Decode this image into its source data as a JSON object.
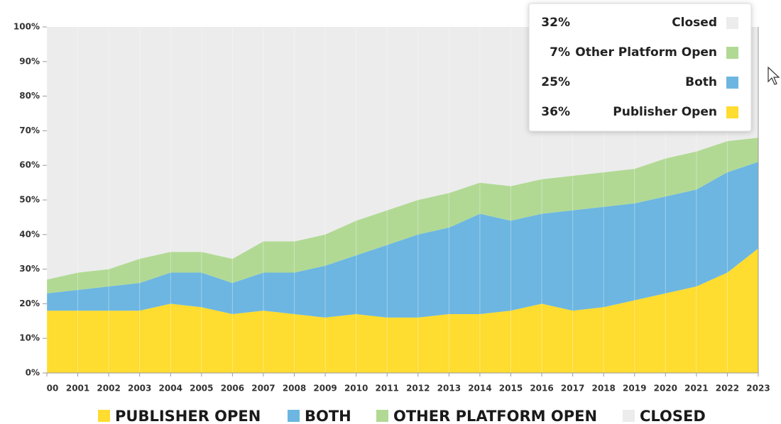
{
  "chart_data": {
    "type": "stacked_area",
    "categories": [
      "00",
      "2001",
      "2002",
      "2003",
      "2004",
      "2005",
      "2006",
      "2007",
      "2008",
      "2009",
      "2010",
      "2011",
      "2012",
      "2013",
      "2014",
      "2015",
      "2016",
      "2017",
      "2018",
      "2019",
      "2020",
      "2021",
      "2022",
      "2023"
    ],
    "series": [
      {
        "name": "Publisher Open",
        "color": "#fedc30",
        "values": [
          18,
          18,
          18,
          18,
          20,
          19,
          17,
          18,
          17,
          16,
          17,
          16,
          16,
          17,
          17,
          18,
          20,
          18,
          19,
          21,
          23,
          25,
          29,
          36
        ]
      },
      {
        "name": "Both",
        "color": "#6cb6e1",
        "values": [
          5,
          6,
          7,
          8,
          9,
          10,
          9,
          11,
          12,
          15,
          17,
          21,
          24,
          25,
          29,
          26,
          26,
          29,
          29,
          28,
          28,
          28,
          29,
          25
        ]
      },
      {
        "name": "Other Platform Open",
        "color": "#b1d994",
        "values": [
          4,
          5,
          5,
          7,
          6,
          6,
          7,
          9,
          9,
          9,
          10,
          10,
          10,
          10,
          9,
          10,
          10,
          10,
          10,
          10,
          11,
          11,
          9,
          7
        ]
      },
      {
        "name": "Closed",
        "color": "#ececec",
        "values": [
          73,
          71,
          70,
          67,
          65,
          65,
          67,
          62,
          62,
          60,
          56,
          53,
          50,
          48,
          45,
          46,
          44,
          43,
          42,
          41,
          38,
          36,
          33,
          32
        ]
      }
    ],
    "tooltip_labels": [
      "36%",
      "25%",
      "7%",
      "32%"
    ],
    "ylim": [
      0,
      100
    ],
    "yticks": [
      {
        "value": 0,
        "label": "0%"
      },
      {
        "value": 10,
        "label": "10%"
      },
      {
        "value": 20,
        "label": "20%"
      },
      {
        "value": 30,
        "label": "30%"
      },
      {
        "value": 40,
        "label": "40%"
      },
      {
        "value": 50,
        "label": "50%"
      },
      {
        "value": 60,
        "label": "60%"
      },
      {
        "value": 70,
        "label": "70%"
      },
      {
        "value": 80,
        "label": "80%"
      },
      {
        "value": 90,
        "label": "90%"
      },
      {
        "value": 100,
        "label": "100%"
      }
    ],
    "grid": true,
    "legend": "bottom"
  }
}
